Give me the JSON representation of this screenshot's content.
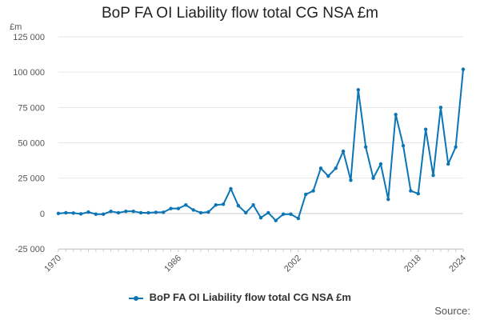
{
  "chart_data": {
    "type": "line",
    "title": "BoP FA OI Liability flow total CG NSA £m",
    "ylabel": "£m",
    "xlabel": "",
    "ylim": [
      -25000,
      125000
    ],
    "xlim": [
      1970,
      2024
    ],
    "yticks": [
      -25000,
      0,
      25000,
      50000,
      75000,
      100000,
      125000
    ],
    "ytick_labels": [
      "-25 000",
      "0",
      "25 000",
      "50 000",
      "75 000",
      "100 000",
      "125 000"
    ],
    "xticks": [
      1970,
      1986,
      2002,
      2018,
      2024
    ],
    "xtick_labels": [
      "1970",
      "1986",
      "2002",
      "2018",
      "2024"
    ],
    "grid": "horizontal",
    "legend_position": "bottom",
    "series": [
      {
        "name": "BoP FA OI Liability flow total CG NSA £m",
        "color": "#0b75b5",
        "x": [
          1970,
          1971,
          1972,
          1973,
          1974,
          1975,
          1976,
          1977,
          1978,
          1979,
          1980,
          1981,
          1982,
          1983,
          1984,
          1985,
          1986,
          1987,
          1988,
          1989,
          1990,
          1991,
          1992,
          1993,
          1994,
          1995,
          1996,
          1997,
          1998,
          1999,
          2000,
          2001,
          2002,
          2003,
          2004,
          2005,
          2006,
          2007,
          2008,
          2009,
          2010,
          2011,
          2012,
          2013,
          2014,
          2015,
          2016,
          2017,
          2018,
          2019,
          2020,
          2021,
          2022,
          2023,
          2024
        ],
        "values": [
          0,
          500,
          300,
          -300,
          1000,
          -500,
          -500,
          1500,
          500,
          1500,
          1500,
          500,
          500,
          800,
          800,
          3500,
          3500,
          6000,
          2500,
          500,
          1000,
          6000,
          6500,
          17500,
          5500,
          500,
          6000,
          -3000,
          500,
          -5000,
          -500,
          -500,
          -3500,
          13500,
          16000,
          32000,
          26500,
          32000,
          44000,
          23500,
          87500,
          47000,
          25000,
          35000,
          10000,
          70000,
          48000,
          16000,
          14000,
          59500,
          27000,
          75000,
          35000,
          47000,
          102000
        ]
      }
    ]
  },
  "legend": {
    "label": "BoP FA OI Liability flow total CG NSA £m"
  },
  "source": "Source:"
}
